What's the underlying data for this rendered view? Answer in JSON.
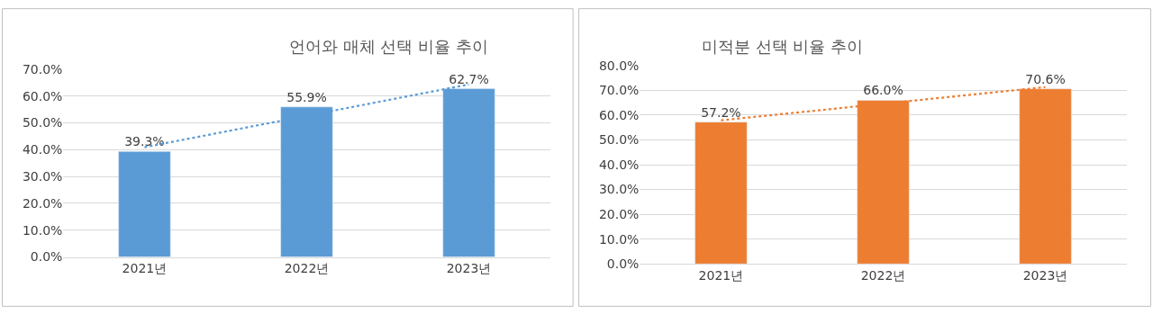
{
  "chart_data": [
    {
      "type": "bar",
      "title": "언어와 매체 선택 비율 추이",
      "categories": [
        "2021년",
        "2022년",
        "2023년"
      ],
      "series": [
        {
          "color": "#5b9bd5",
          "values": [
            39.3,
            55.9,
            62.7
          ],
          "value_labels": [
            "39.3%",
            "55.9%",
            "62.7%"
          ]
        },
        {
          "type": "line",
          "color": "#5b9bd5",
          "values": [
            40.9,
            52.6,
            64.3
          ],
          "line_style": "dotted",
          "marker": "none"
        }
      ],
      "ylim": [
        0,
        70
      ],
      "yticks": [
        {
          "value": 0,
          "label": "0.0%"
        },
        {
          "value": 10,
          "label": "10.0%"
        },
        {
          "value": 20,
          "label": "20.0%"
        },
        {
          "value": 30,
          "label": "30.0%"
        },
        {
          "value": 40,
          "label": "40.0%"
        },
        {
          "value": 50,
          "label": "50.0%"
        },
        {
          "value": 60,
          "label": "60.0%"
        },
        {
          "value": 70,
          "label": "70.0%"
        }
      ],
      "grid": "y"
    },
    {
      "type": "bar",
      "title": "미적분 선택 비율 추이",
      "categories": [
        "2021년",
        "2022년",
        "2023년"
      ],
      "series": [
        {
          "color": "#ed7d31",
          "values": [
            57.2,
            66.0,
            70.6
          ],
          "value_labels": [
            "57.2%",
            "66.0%",
            "70.6%"
          ]
        },
        {
          "type": "line",
          "color": "#ed7d31",
          "values": [
            57.9,
            64.6,
            71.3
          ],
          "line_style": "dotted",
          "marker": "none"
        }
      ],
      "ylim": [
        0,
        80
      ],
      "yticks": [
        {
          "value": 0,
          "label": "0.0%"
        },
        {
          "value": 10,
          "label": "10.0%"
        },
        {
          "value": 20,
          "label": "20.0%"
        },
        {
          "value": 30,
          "label": "30.0%"
        },
        {
          "value": 40,
          "label": "40.0%"
        },
        {
          "value": 50,
          "label": "50.0%"
        },
        {
          "value": 60,
          "label": "60.0%"
        },
        {
          "value": 70,
          "label": "70.0%"
        },
        {
          "value": 80,
          "label": "80.0%"
        }
      ],
      "grid": "y"
    }
  ]
}
